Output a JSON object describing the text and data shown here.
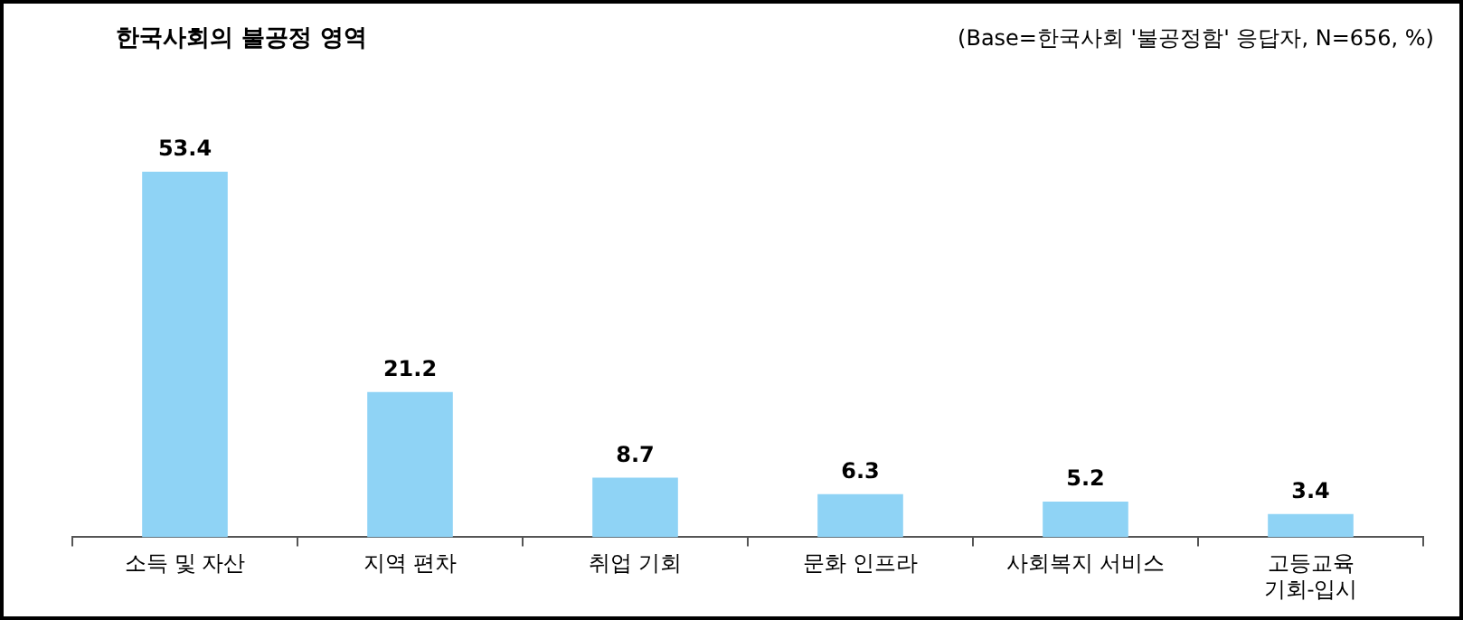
{
  "chart_data": {
    "type": "bar",
    "title": "한국사회의 불공정 영역",
    "subtitle": "(Base=한국사회 '불공정함' 응답자, N=656, %)",
    "categories": [
      "소득 및 자산",
      "지역 편차",
      "취업 기회",
      "문화 인프라",
      "사회복지 서비스",
      "고등교육\n기회-입시"
    ],
    "values": [
      53.4,
      21.2,
      8.7,
      6.3,
      5.2,
      3.4
    ],
    "color": "#8fd3f5",
    "data_labels": true,
    "grid": false,
    "legend": false
  }
}
